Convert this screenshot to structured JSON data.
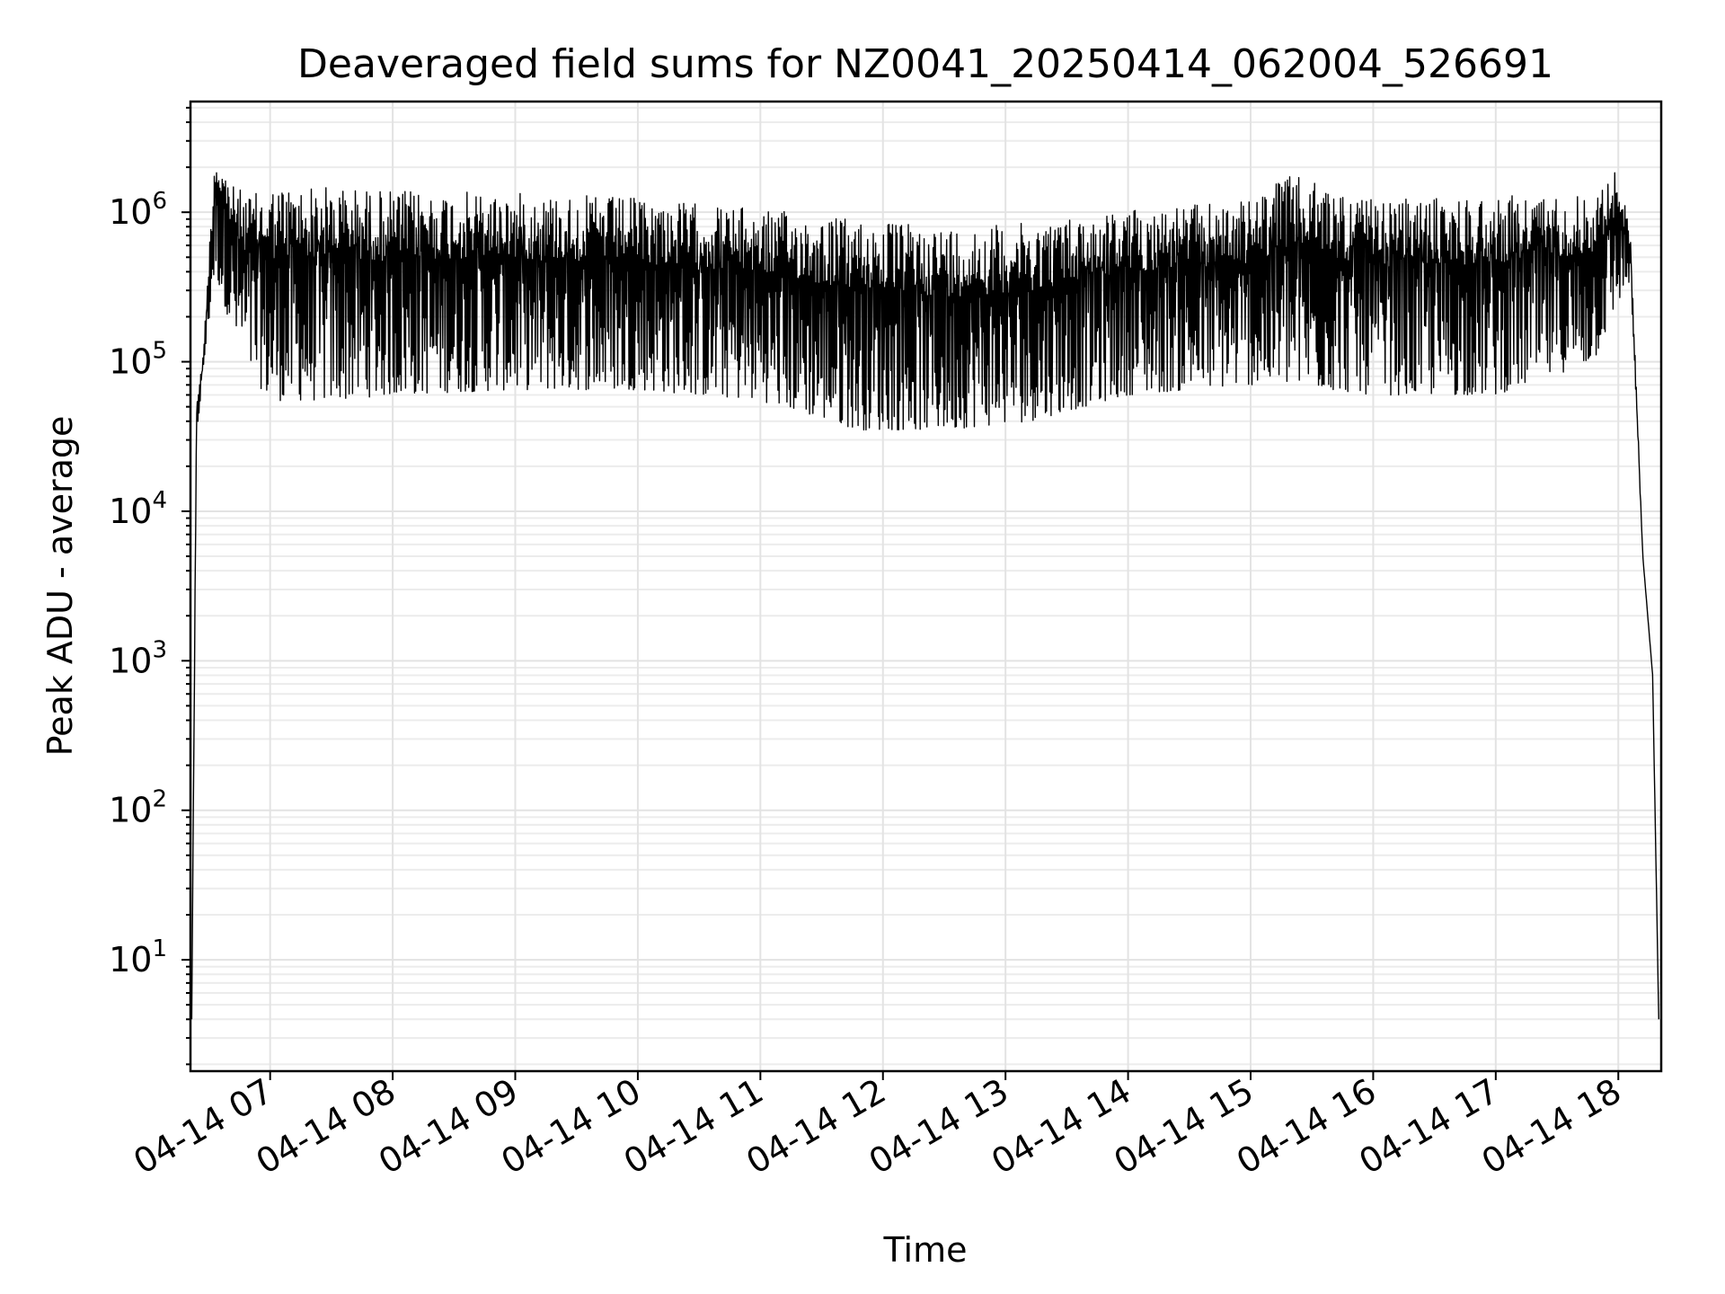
{
  "chart_data": {
    "type": "line",
    "title": "Deaveraged field sums for NZ0041_20250414_062004_526691",
    "xlabel": "Time",
    "ylabel": "Peak ADU - average",
    "yscale": "log",
    "ylim": [
      1.8,
      5500000
    ],
    "x_range_hours": [
      6.35,
      18.35
    ],
    "x_ticks": [
      {
        "hour": 7,
        "label": "04-14 07"
      },
      {
        "hour": 8,
        "label": "04-14 08"
      },
      {
        "hour": 9,
        "label": "04-14 09"
      },
      {
        "hour": 10,
        "label": "04-14 10"
      },
      {
        "hour": 11,
        "label": "04-14 11"
      },
      {
        "hour": 12,
        "label": "04-14 12"
      },
      {
        "hour": 13,
        "label": "04-14 13"
      },
      {
        "hour": 14,
        "label": "04-14 14"
      },
      {
        "hour": 15,
        "label": "04-14 15"
      },
      {
        "hour": 16,
        "label": "04-14 16"
      },
      {
        "hour": 17,
        "label": "04-14 17"
      },
      {
        "hour": 18,
        "label": "04-14 18"
      }
    ],
    "y_ticks": [
      {
        "exponent": 1,
        "base": "10",
        "sup": "1"
      },
      {
        "exponent": 2,
        "base": "10",
        "sup": "2"
      },
      {
        "exponent": 3,
        "base": "10",
        "sup": "3"
      },
      {
        "exponent": 4,
        "base": "10",
        "sup": "4"
      },
      {
        "exponent": 5,
        "base": "10",
        "sup": "5"
      },
      {
        "exponent": 6,
        "base": "10",
        "sup": "6"
      }
    ],
    "grid": true,
    "series": [
      {
        "name": "deaveraged field sum",
        "color": "#000000",
        "envelope": [
          {
            "t": 6.36,
            "low": 4,
            "high": 4
          },
          {
            "t": 6.4,
            "low": 30000,
            "high": 60000
          },
          {
            "t": 6.45,
            "low": 80000,
            "high": 100000
          },
          {
            "t": 6.55,
            "low": 400000,
            "high": 2800000
          },
          {
            "t": 6.7,
            "low": 150000,
            "high": 1500000
          },
          {
            "t": 6.85,
            "low": 80000,
            "high": 1300000
          },
          {
            "t": 7.0,
            "low": 55000,
            "high": 1500000
          },
          {
            "t": 7.5,
            "low": 55000,
            "high": 1500000
          },
          {
            "t": 8.0,
            "low": 60000,
            "high": 1400000
          },
          {
            "t": 9.0,
            "low": 65000,
            "high": 1350000
          },
          {
            "t": 10.0,
            "low": 65000,
            "high": 1250000
          },
          {
            "t": 11.0,
            "low": 55000,
            "high": 1050000
          },
          {
            "t": 11.8,
            "low": 35000,
            "high": 900000
          },
          {
            "t": 12.5,
            "low": 35000,
            "high": 800000
          },
          {
            "t": 13.2,
            "low": 40000,
            "high": 850000
          },
          {
            "t": 14.0,
            "low": 60000,
            "high": 1050000
          },
          {
            "t": 15.0,
            "low": 70000,
            "high": 1200000
          },
          {
            "t": 15.3,
            "low": 70000,
            "high": 1800000
          },
          {
            "t": 16.0,
            "low": 60000,
            "high": 1200000
          },
          {
            "t": 17.0,
            "low": 60000,
            "high": 1300000
          },
          {
            "t": 17.8,
            "low": 100000,
            "high": 1300000
          },
          {
            "t": 18.0,
            "low": 250000,
            "high": 2000000
          },
          {
            "t": 18.1,
            "low": 350000,
            "high": 700000
          },
          {
            "t": 18.2,
            "low": 5000,
            "high": 5000
          },
          {
            "t": 18.28,
            "low": 800,
            "high": 800
          },
          {
            "t": 18.33,
            "low": 4,
            "high": 4
          }
        ]
      }
    ]
  }
}
